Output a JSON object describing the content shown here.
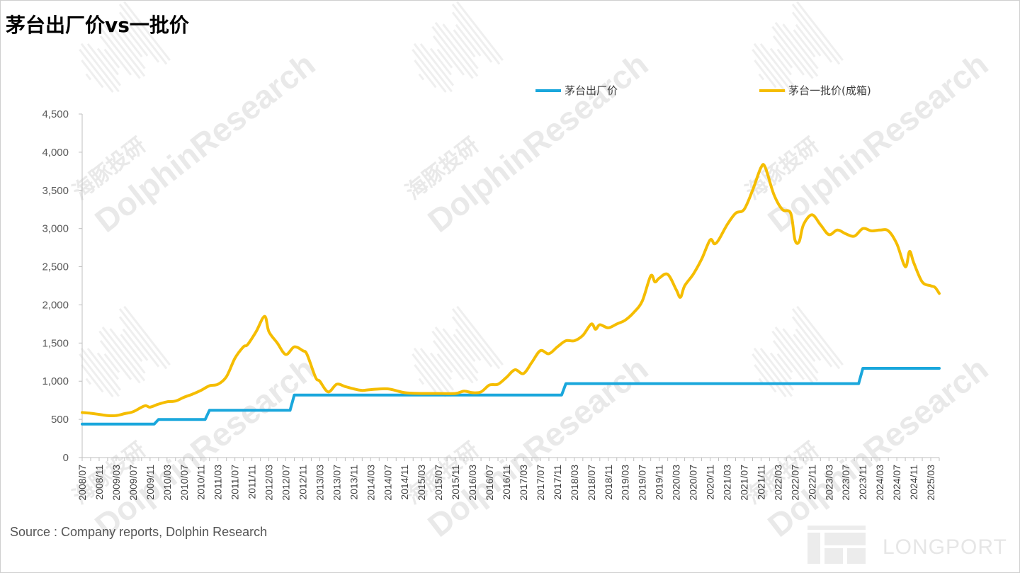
{
  "title": "茅台出厂价vs一批价",
  "source": "Source : Company reports, Dolphin Research",
  "watermark": {
    "cn": "海豚投研",
    "en": "DolphinResearch",
    "logo_text": "LONGPORT"
  },
  "colors": {
    "ex_factory": "#1aa7dc",
    "wholesale": "#f5bd00",
    "axis": "#bfbfbf",
    "watermark": "#e9e9e9"
  },
  "chart_data": {
    "type": "line",
    "title": "茅台出厂价vs一批价",
    "xlabel": "",
    "ylabel": "",
    "ylim": [
      0,
      4500
    ],
    "yticks": [
      0,
      500,
      1000,
      1500,
      2000,
      2500,
      3000,
      3500,
      4000,
      4500
    ],
    "ytick_labels": [
      "0",
      "500",
      "1,000",
      "1,500",
      "2,000",
      "2,500",
      "3,000",
      "3,500",
      "4,000",
      "4,500"
    ],
    "x_range": [
      "2008/07",
      "2025/05"
    ],
    "xtick_labels": [
      "2008/07",
      "2008/11",
      "2009/03",
      "2009/07",
      "2009/11",
      "2010/03",
      "2010/07",
      "2010/11",
      "2011/03",
      "2011/07",
      "2011/11",
      "2012/03",
      "2012/07",
      "2012/11",
      "2013/03",
      "2013/07",
      "2013/11",
      "2014/03",
      "2014/07",
      "2014/11",
      "2015/03",
      "2015/07",
      "2015/11",
      "2016/03",
      "2016/07",
      "2016/11",
      "2017/03",
      "2017/07",
      "2017/11",
      "2018/03",
      "2018/07",
      "2018/11",
      "2019/03",
      "2019/07",
      "2019/11",
      "2020/03",
      "2020/07",
      "2020/11",
      "2021/03",
      "2021/07",
      "2021/11",
      "2022/03",
      "2022/07",
      "2022/11",
      "2023/03",
      "2023/07",
      "2023/11",
      "2024/03",
      "2024/07",
      "2024/11",
      "2025/03"
    ],
    "legend_position": "top",
    "grid": false,
    "series": [
      {
        "name": "茅台出厂价",
        "color": "#1aa7dc",
        "points": [
          [
            "2008/07",
            439
          ],
          [
            "2009/12",
            439
          ],
          [
            "2010/01",
            499
          ],
          [
            "2010/12",
            499
          ],
          [
            "2011/01",
            619
          ],
          [
            "2012/08",
            619
          ],
          [
            "2012/09",
            819
          ],
          [
            "2017/12",
            819
          ],
          [
            "2018/01",
            969
          ],
          [
            "2023/10",
            969
          ],
          [
            "2023/11",
            1169
          ],
          [
            "2025/05",
            1169
          ]
        ]
      },
      {
        "name": "茅台一批价(成箱)",
        "color": "#f5bd00",
        "points": [
          [
            "2008/07",
            590
          ],
          [
            "2008/09",
            580
          ],
          [
            "2008/11",
            565
          ],
          [
            "2009/01",
            550
          ],
          [
            "2009/03",
            550
          ],
          [
            "2009/05",
            575
          ],
          [
            "2009/07",
            600
          ],
          [
            "2009/09",
            660
          ],
          [
            "2009/10",
            680
          ],
          [
            "2009/11",
            660
          ],
          [
            "2010/01",
            700
          ],
          [
            "2010/03",
            730
          ],
          [
            "2010/05",
            740
          ],
          [
            "2010/07",
            790
          ],
          [
            "2010/09",
            830
          ],
          [
            "2010/11",
            880
          ],
          [
            "2011/01",
            940
          ],
          [
            "2011/03",
            960
          ],
          [
            "2011/05",
            1060
          ],
          [
            "2011/07",
            1300
          ],
          [
            "2011/09",
            1450
          ],
          [
            "2011/10",
            1480
          ],
          [
            "2011/12",
            1650
          ],
          [
            "2012/02",
            1850
          ],
          [
            "2012/03",
            1650
          ],
          [
            "2012/05",
            1500
          ],
          [
            "2012/07",
            1350
          ],
          [
            "2012/09",
            1450
          ],
          [
            "2012/11",
            1400
          ],
          [
            "2012/12",
            1350
          ],
          [
            "2013/02",
            1050
          ],
          [
            "2013/03",
            1000
          ],
          [
            "2013/05",
            860
          ],
          [
            "2013/07",
            960
          ],
          [
            "2013/09",
            930
          ],
          [
            "2013/11",
            900
          ],
          [
            "2014/01",
            880
          ],
          [
            "2014/03",
            890
          ],
          [
            "2014/07",
            900
          ],
          [
            "2014/11",
            850
          ],
          [
            "2015/03",
            840
          ],
          [
            "2015/07",
            840
          ],
          [
            "2015/11",
            840
          ],
          [
            "2016/01",
            870
          ],
          [
            "2016/03",
            850
          ],
          [
            "2016/05",
            860
          ],
          [
            "2016/07",
            950
          ],
          [
            "2016/09",
            960
          ],
          [
            "2016/11",
            1050
          ],
          [
            "2017/01",
            1150
          ],
          [
            "2017/03",
            1100
          ],
          [
            "2017/05",
            1250
          ],
          [
            "2017/07",
            1400
          ],
          [
            "2017/09",
            1360
          ],
          [
            "2017/11",
            1450
          ],
          [
            "2018/01",
            1530
          ],
          [
            "2018/03",
            1530
          ],
          [
            "2018/05",
            1600
          ],
          [
            "2018/07",
            1750
          ],
          [
            "2018/08",
            1680
          ],
          [
            "2018/09",
            1740
          ],
          [
            "2018/11",
            1700
          ],
          [
            "2019/01",
            1750
          ],
          [
            "2019/03",
            1800
          ],
          [
            "2019/05",
            1900
          ],
          [
            "2019/07",
            2050
          ],
          [
            "2019/09",
            2380
          ],
          [
            "2019/10",
            2300
          ],
          [
            "2019/11",
            2350
          ],
          [
            "2020/01",
            2400
          ],
          [
            "2020/03",
            2200
          ],
          [
            "2020/04",
            2100
          ],
          [
            "2020/05",
            2250
          ],
          [
            "2020/07",
            2400
          ],
          [
            "2020/09",
            2600
          ],
          [
            "2020/11",
            2850
          ],
          [
            "2020/12",
            2800
          ],
          [
            "2021/01",
            2850
          ],
          [
            "2021/03",
            3050
          ],
          [
            "2021/05",
            3200
          ],
          [
            "2021/07",
            3250
          ],
          [
            "2021/09",
            3500
          ],
          [
            "2021/11",
            3800
          ],
          [
            "2021/12",
            3800
          ],
          [
            "2022/02",
            3450
          ],
          [
            "2022/04",
            3250
          ],
          [
            "2022/06",
            3200
          ],
          [
            "2022/07",
            2850
          ],
          [
            "2022/08",
            2830
          ],
          [
            "2022/09",
            3050
          ],
          [
            "2022/11",
            3180
          ],
          [
            "2023/01",
            3050
          ],
          [
            "2023/03",
            2920
          ],
          [
            "2023/05",
            2980
          ],
          [
            "2023/07",
            2930
          ],
          [
            "2023/09",
            2900
          ],
          [
            "2023/11",
            3000
          ],
          [
            "2024/01",
            2970
          ],
          [
            "2024/03",
            2980
          ],
          [
            "2024/05",
            2970
          ],
          [
            "2024/07",
            2800
          ],
          [
            "2024/09",
            2500
          ],
          [
            "2024/10",
            2700
          ],
          [
            "2024/11",
            2550
          ],
          [
            "2025/01",
            2300
          ],
          [
            "2025/03",
            2250
          ],
          [
            "2025/04",
            2230
          ],
          [
            "2025/05",
            2150
          ]
        ]
      }
    ]
  }
}
